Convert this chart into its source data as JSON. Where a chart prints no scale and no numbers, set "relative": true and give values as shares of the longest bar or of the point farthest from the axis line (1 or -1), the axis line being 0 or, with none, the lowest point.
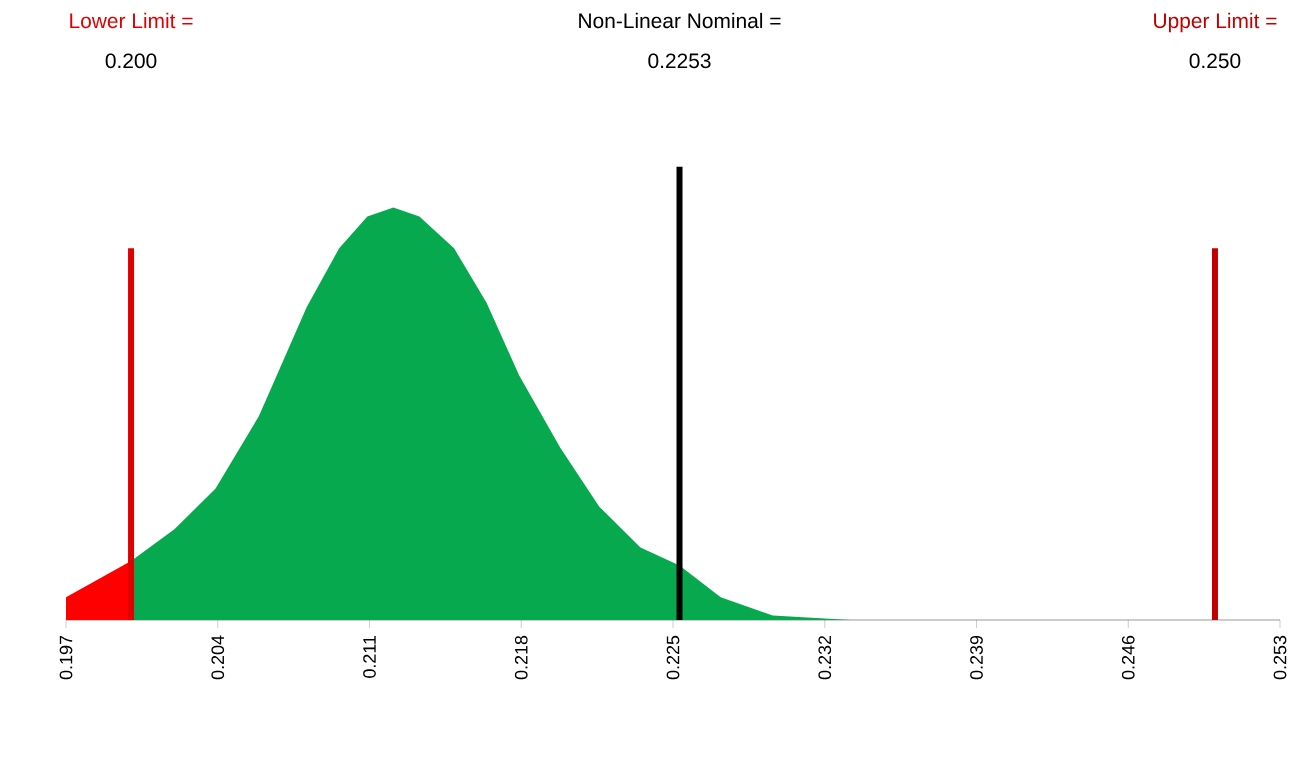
{
  "chart_data": {
    "type": "area",
    "relative": true,
    "xlim": [
      0.197,
      0.253
    ],
    "xticks": [
      0.197,
      0.204,
      0.211,
      0.218,
      0.225,
      0.232,
      0.239,
      0.246,
      0.253
    ],
    "legend": false,
    "grid": false,
    "series": [
      {
        "color": "#ff0000",
        "x": [
          0.197,
          0.2
        ],
        "values": [
          0.05,
          0.13
        ]
      },
      {
        "color": "#06a94d",
        "x": [
          0.2,
          0.202,
          0.2039,
          0.2059,
          0.2081,
          0.2096,
          0.2109,
          0.2121,
          0.2133,
          0.2149,
          0.2164,
          0.2179,
          0.2198,
          0.2216,
          0.2235,
          0.2253,
          0.2272,
          0.2296,
          0.2332
        ],
        "values": [
          0.13,
          0.2,
          0.29,
          0.45,
          0.69,
          0.82,
          0.89,
          0.91,
          0.89,
          0.82,
          0.7,
          0.54,
          0.38,
          0.25,
          0.16,
          0.12,
          0.05,
          0.01,
          0
        ]
      },
      {
        "type": "line",
        "name": "Lower Limit =",
        "color": "#e00000",
        "x": [
          0.2,
          0.2
        ],
        "values": [
          0,
          0.82
        ]
      },
      {
        "type": "line",
        "name": "Non-Linear Nominal =",
        "color": "#000000",
        "x": [
          0.2253,
          0.2253
        ],
        "values": [
          0,
          1
        ]
      },
      {
        "type": "line",
        "name": "Upper Limit =",
        "color": "#c00000",
        "x": [
          0.25,
          0.25
        ],
        "values": [
          0,
          0.82
        ]
      }
    ],
    "annotations": [
      "0.200",
      "0.2253",
      "0.250"
    ]
  }
}
